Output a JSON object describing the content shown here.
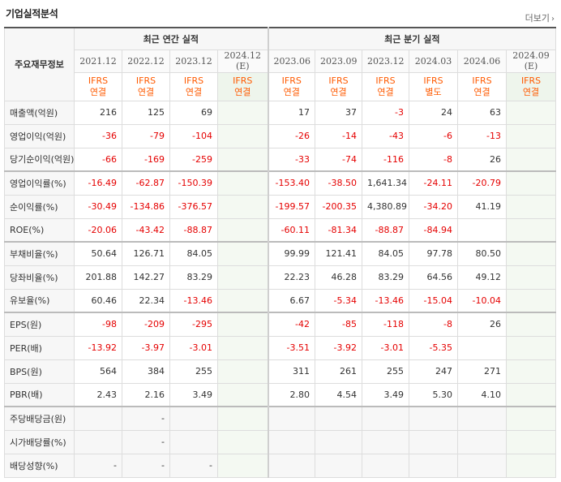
{
  "header": {
    "title": "기업실적분석",
    "more_label": "더보기",
    "more_icon": "chevron-right-icon"
  },
  "table": {
    "row_head_label": "주요재무정보",
    "annual_group_label": "최근 연간 실적",
    "quarter_group_label": "최근 분기 실적",
    "periods": [
      {
        "label": "2021.12",
        "est": "",
        "std": "IFRS",
        "basis": "연결",
        "estimate": false
      },
      {
        "label": "2022.12",
        "est": "",
        "std": "IFRS",
        "basis": "연결",
        "estimate": false
      },
      {
        "label": "2023.12",
        "est": "",
        "std": "IFRS",
        "basis": "연결",
        "estimate": false
      },
      {
        "label": "2024.12",
        "est": "(E)",
        "std": "IFRS",
        "basis": "연결",
        "estimate": true
      },
      {
        "label": "2023.06",
        "est": "",
        "std": "IFRS",
        "basis": "연결",
        "estimate": false
      },
      {
        "label": "2023.09",
        "est": "",
        "std": "IFRS",
        "basis": "연결",
        "estimate": false
      },
      {
        "label": "2023.12",
        "est": "",
        "std": "IFRS",
        "basis": "연결",
        "estimate": false
      },
      {
        "label": "2024.03",
        "est": "",
        "std": "IFRS",
        "basis": "별도",
        "estimate": false
      },
      {
        "label": "2024.06",
        "est": "",
        "std": "IFRS",
        "basis": "연결",
        "estimate": false
      },
      {
        "label": "2024.09",
        "est": "(E)",
        "std": "IFRS",
        "basis": "연결",
        "estimate": true
      }
    ],
    "rows": [
      {
        "label": "매출액(억원)",
        "values": [
          "216",
          "125",
          "69",
          "",
          "17",
          "37",
          "-3",
          "24",
          "63",
          ""
        ]
      },
      {
        "label": "영업이익(억원)",
        "values": [
          "-36",
          "-79",
          "-104",
          "",
          "-26",
          "-14",
          "-43",
          "-6",
          "-13",
          ""
        ]
      },
      {
        "label": "당기순이익(억원)",
        "values": [
          "-66",
          "-169",
          "-259",
          "",
          "-33",
          "-74",
          "-116",
          "-8",
          "26",
          ""
        ]
      },
      {
        "label": "영업이익률(%)",
        "values": [
          "-16.49",
          "-62.87",
          "-150.39",
          "",
          "-153.40",
          "-38.50",
          "1,641.34",
          "-24.11",
          "-20.79",
          ""
        ],
        "sep": true
      },
      {
        "label": "순이익률(%)",
        "values": [
          "-30.49",
          "-134.86",
          "-376.57",
          "",
          "-199.57",
          "-200.35",
          "4,380.89",
          "-34.20",
          "41.19",
          ""
        ]
      },
      {
        "label": "ROE(%)",
        "values": [
          "-20.06",
          "-43.42",
          "-88.87",
          "",
          "-60.11",
          "-81.34",
          "-88.87",
          "-84.94",
          "",
          ""
        ]
      },
      {
        "label": "부채비율(%)",
        "values": [
          "50.64",
          "126.71",
          "84.05",
          "",
          "99.99",
          "121.41",
          "84.05",
          "97.78",
          "80.50",
          ""
        ],
        "sep": true
      },
      {
        "label": "당좌비율(%)",
        "values": [
          "201.88",
          "142.27",
          "83.29",
          "",
          "22.23",
          "46.28",
          "83.29",
          "64.56",
          "49.12",
          ""
        ]
      },
      {
        "label": "유보율(%)",
        "values": [
          "60.46",
          "22.34",
          "-13.46",
          "",
          "6.67",
          "-5.34",
          "-13.46",
          "-15.04",
          "-10.04",
          ""
        ]
      },
      {
        "label": "EPS(원)",
        "values": [
          "-98",
          "-209",
          "-295",
          "",
          "-42",
          "-85",
          "-118",
          "-8",
          "26",
          ""
        ],
        "sep": true
      },
      {
        "label": "PER(배)",
        "values": [
          "-13.92",
          "-3.97",
          "-3.01",
          "",
          "-3.51",
          "-3.92",
          "-3.01",
          "-5.35",
          "",
          ""
        ]
      },
      {
        "label": "BPS(원)",
        "values": [
          "564",
          "384",
          "255",
          "",
          "311",
          "261",
          "255",
          "247",
          "271",
          ""
        ]
      },
      {
        "label": "PBR(배)",
        "values": [
          "2.43",
          "2.16",
          "3.49",
          "",
          "2.80",
          "4.54",
          "3.49",
          "5.30",
          "4.10",
          ""
        ]
      },
      {
        "label": "주당배당금(원)",
        "values": [
          "",
          "-",
          "",
          "",
          "",
          "",
          "",
          "",
          "",
          ""
        ],
        "sep": true,
        "gray": true
      },
      {
        "label": "시가배당률(%)",
        "values": [
          "",
          "-",
          "",
          "",
          "",
          "",
          "",
          "",
          "",
          ""
        ],
        "gray": true
      },
      {
        "label": "배당성향(%)",
        "values": [
          "-",
          "-",
          "-",
          "",
          "",
          "",
          "",
          "",
          "",
          ""
        ],
        "gray": true
      }
    ]
  },
  "colors": {
    "negative": "#e50000",
    "ifrs": "#ff5a00",
    "estimate_bg": "#eef5ec"
  }
}
